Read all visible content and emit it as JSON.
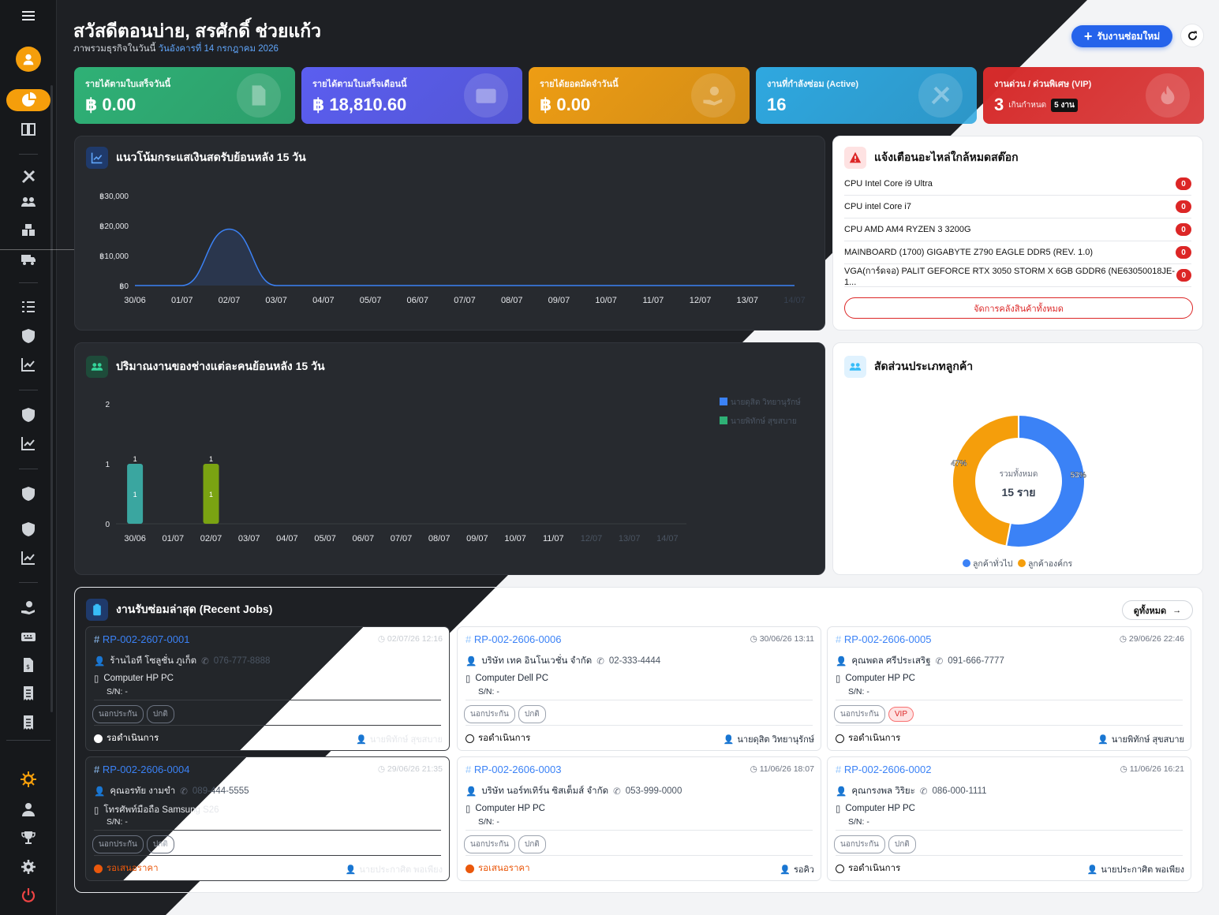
{
  "header": {
    "greeting": "สวัสดีตอนบ่าย, สรศักดิ์ ช่วยแก้ว",
    "subtitle": "ภาพรวมธุรกิจในวันนี้",
    "date": "วันอังคารที่ 14 กรกฎาคม 2026",
    "new_job_button": "รับงานซ่อมใหม่"
  },
  "sidebar": {
    "icons": [
      "menu-icon",
      "user-avatar-icon",
      "dashboard-icon",
      "book-icon",
      "tools-icon",
      "users-icon",
      "boxes-icon",
      "truck-icon",
      "checklist-icon",
      "shield-icon",
      "chart-icon",
      "shield-icon",
      "chart-icon",
      "shield-icon",
      "shield-icon",
      "chart-icon",
      "hand-money-icon",
      "keyboard-icon",
      "invoice-icon",
      "receipt-icon",
      "receipt-icon",
      "gear-sun-icon",
      "user-icon",
      "trophy-icon",
      "settings-icon",
      "power-icon"
    ]
  },
  "kpis": [
    {
      "label": "รายได้ตามใบเสร็จวันนี้",
      "value": "฿ 0.00",
      "color": "#2fb176"
    },
    {
      "label": "รายได้ตามใบเสร็จเดือนนี้",
      "value": "฿ 18,810.60",
      "color": "#5b5ef0"
    },
    {
      "label": "รายได้ยอดมัดจำวันนี้",
      "value": "฿ 0.00",
      "color": "#ee9d14"
    },
    {
      "label": "งานที่กำลังซ่อม (Active)",
      "value": "16",
      "color": "#2fa8e0"
    },
    {
      "label": "งานด่วน / ด่วนพิเศษ (VIP)",
      "value": "3",
      "extra": "เกินกำหนด",
      "extra_badge": "5 งาน",
      "color": "#d62b2b"
    }
  ],
  "cashflow": {
    "title": "แนวโน้มกระแสเงินสดรับย้อนหลัง 15 วัน"
  },
  "stock": {
    "title": "แจ้งเตือนอะไหล่ใกล้หมดสต๊อก",
    "items": [
      {
        "name": "CPU Intel Core i9 Ultra",
        "qty": "0"
      },
      {
        "name": "CPU intel Core i7",
        "qty": "0"
      },
      {
        "name": "CPU AMD AM4 RYZEN 3 3200G",
        "qty": "0"
      },
      {
        "name": "MAINBOARD (1700) GIGABYTE Z790 EAGLE DDR5 (REV. 1.0)",
        "qty": "0"
      },
      {
        "name": "VGA(การ์ดจอ) PALIT GEFORCE RTX 3050 STORM X 6GB GDDR6 (NE63050018JE-1...",
        "qty": "0"
      }
    ],
    "manage_button": "จัดการคลังสินค้าทั้งหมด"
  },
  "techload": {
    "title": "ปริมาณงานของช่างแต่ละคนย้อนหลัง 15 วัน"
  },
  "customers": {
    "title": "สัดส่วนประเภทลูกค้า",
    "center_label": "รวมทั้งหมด",
    "center_value": "15 ราย"
  },
  "jobs": {
    "title": "งานรับซ่อมล่าสุด (Recent Jobs)",
    "view_all": "ดูทั้งหมด",
    "items": [
      {
        "id": "RP-002-2607-0001",
        "date": "02/07/26 12:16",
        "customer": "ร้านไอที โซลูชั่น ภูเก็ต",
        "phone": "076-777-8888",
        "device": "Computer HP PC",
        "sn": "S/N: -",
        "tags": [
          "นอกประกัน",
          "ปกติ"
        ],
        "status": "รอดำเนินการ",
        "tech": "นายพิทักษ์ สุขสบาย"
      },
      {
        "id": "RP-002-2606-0006",
        "date": "30/06/26 13:11",
        "customer": "บริษัท เทค อินโนเวชั่น จำกัด",
        "phone": "02-333-4444",
        "device": "Computer Dell PC",
        "sn": "S/N: -",
        "tags": [
          "นอกประกัน",
          "ปกติ"
        ],
        "status": "รอดำเนินการ",
        "tech": "นายดุสิต วิทยานุรักษ์"
      },
      {
        "id": "RP-002-2606-0005",
        "date": "29/06/26 22:46",
        "customer": "คุณพดล ศรีประเสริฐ",
        "phone": "091-666-7777",
        "device": "Computer HP PC",
        "sn": "S/N: -",
        "tags": [
          "นอกประกัน",
          "VIP"
        ],
        "status": "รอดำเนินการ",
        "tech": "นายพิทักษ์ สุขสบาย"
      },
      {
        "id": "RP-002-2606-0004",
        "date": "29/06/26 21:35",
        "customer": "คุณอรทัย งามขำ",
        "phone": "089-444-5555",
        "device": "โทรศัพท์มือถือ Samsung S26",
        "sn": "S/N: -",
        "tags": [
          "นอกประกัน",
          "ปกติ"
        ],
        "status": "รอเสนอราคา",
        "tech": "นายประกาศิต พอเพียง"
      },
      {
        "id": "RP-002-2606-0003",
        "date": "11/06/26 18:07",
        "customer": "บริษัท นอร์ทเทิร์น ซิสเต็มส์ จำกัด",
        "phone": "053-999-0000",
        "device": "Computer HP PC",
        "sn": "S/N: -",
        "tags": [
          "นอกประกัน",
          "ปกติ"
        ],
        "status": "รอเสนอราคา",
        "tech": "รอคิว"
      },
      {
        "id": "RP-002-2606-0002",
        "date": "11/06/26 16:21",
        "customer": "คุณกรงพล วิริยะ",
        "phone": "086-000-1111",
        "device": "Computer HP PC",
        "sn": "S/N: -",
        "tags": [
          "นอกประกัน",
          "ปกติ"
        ],
        "status": "รอดำเนินการ",
        "tech": "นายประกาศิต พอเพียง"
      }
    ]
  },
  "chart_data": [
    {
      "type": "area",
      "title": "แนวโน้มกระแสเงินสดรับย้อนหลัง 15 วัน",
      "categories": [
        "30/06",
        "01/07",
        "02/07",
        "03/07",
        "04/07",
        "05/07",
        "06/07",
        "07/07",
        "08/07",
        "09/07",
        "10/07",
        "11/07",
        "12/07",
        "13/07",
        "14/07"
      ],
      "values": [
        0,
        0,
        18810.6,
        0,
        0,
        0,
        0,
        0,
        0,
        0,
        0,
        0,
        0,
        0,
        0
      ],
      "y_ticks": [
        "฿0",
        "฿10,000",
        "฿20,000",
        "฿30,000"
      ],
      "ylim": [
        0,
        30000
      ],
      "color": "#3b82f6"
    },
    {
      "type": "bar",
      "title": "ปริมาณงานของช่างแต่ละคนย้อนหลัง 15 วัน",
      "categories": [
        "30/06",
        "01/07",
        "02/07",
        "03/07",
        "04/07",
        "05/07",
        "06/07",
        "07/07",
        "08/07",
        "09/07",
        "10/07",
        "11/07",
        "12/07",
        "13/07",
        "14/07"
      ],
      "y_ticks": [
        "0",
        "1",
        "2"
      ],
      "ylim": [
        0,
        2
      ],
      "series": [
        {
          "name": "นายดุสิต วิทยานุรักษ์",
          "color": "#3b82f6",
          "values": [
            0,
            0,
            0,
            0,
            0,
            0,
            0,
            0,
            0,
            0,
            0,
            0,
            0,
            0,
            0
          ]
        },
        {
          "name": "นายพิทักษ์ สุขสบาย",
          "color": "#2fb176",
          "values": [
            0,
            0,
            0,
            0,
            0,
            0,
            0,
            0,
            0,
            0,
            0,
            0,
            0,
            0,
            0
          ]
        }
      ],
      "bars": [
        {
          "category": "30/06",
          "value": 1,
          "color": "#3aa6a0"
        },
        {
          "category": "02/07",
          "value": 1,
          "color": "#7aa312"
        }
      ]
    },
    {
      "type": "pie",
      "title": "สัดส่วนประเภทลูกค้า",
      "categories": [
        "ลูกค้าทั่วไป",
        "ลูกค้าองค์กร"
      ],
      "values": [
        53,
        47
      ],
      "labels": [
        "53%",
        "47%"
      ],
      "colors": [
        "#3b82f6",
        "#f59e0b"
      ]
    }
  ]
}
